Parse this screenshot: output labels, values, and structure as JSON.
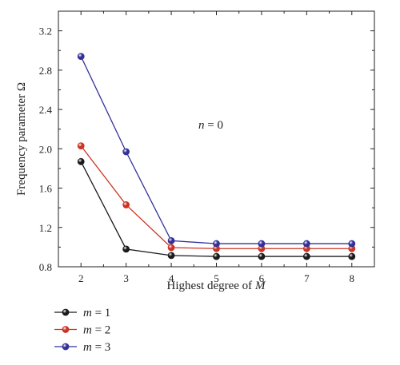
{
  "chart_data": {
    "type": "line",
    "annotation": {
      "var": "n",
      "eq": " = 0"
    },
    "xlabel": {
      "text": "Highest degree of ",
      "var": "M"
    },
    "ylabel": "Frequency parameter Ω",
    "xlim": [
      1.5,
      8.5
    ],
    "ylim": [
      0.8,
      3.4
    ],
    "x_ticks": [
      2,
      3,
      4,
      5,
      6,
      7,
      8
    ],
    "y_ticks": [
      0.8,
      1.2,
      1.6,
      2.0,
      2.4,
      2.8,
      3.2
    ],
    "y_tick_labels": [
      "0.8",
      "1.2",
      "1.6",
      "2.0",
      "2.4",
      "2.8",
      "3.2"
    ],
    "grid": false,
    "legend_position": "below-left",
    "x": [
      2,
      3,
      4,
      5,
      6,
      7,
      8
    ],
    "series": [
      {
        "label_var": "m",
        "label_eq": " = 1",
        "color": "#1a1a1a",
        "values": [
          1.87,
          0.98,
          0.915,
          0.905,
          0.905,
          0.905,
          0.905
        ]
      },
      {
        "label_var": "m",
        "label_eq": " = 2",
        "color": "#cc3322",
        "values": [
          2.03,
          1.43,
          0.995,
          0.985,
          0.985,
          0.985,
          0.985
        ]
      },
      {
        "label_var": "m",
        "label_eq": " = 3",
        "color": "#33309a",
        "values": [
          2.94,
          1.97,
          1.065,
          1.035,
          1.035,
          1.035,
          1.035
        ]
      }
    ]
  }
}
